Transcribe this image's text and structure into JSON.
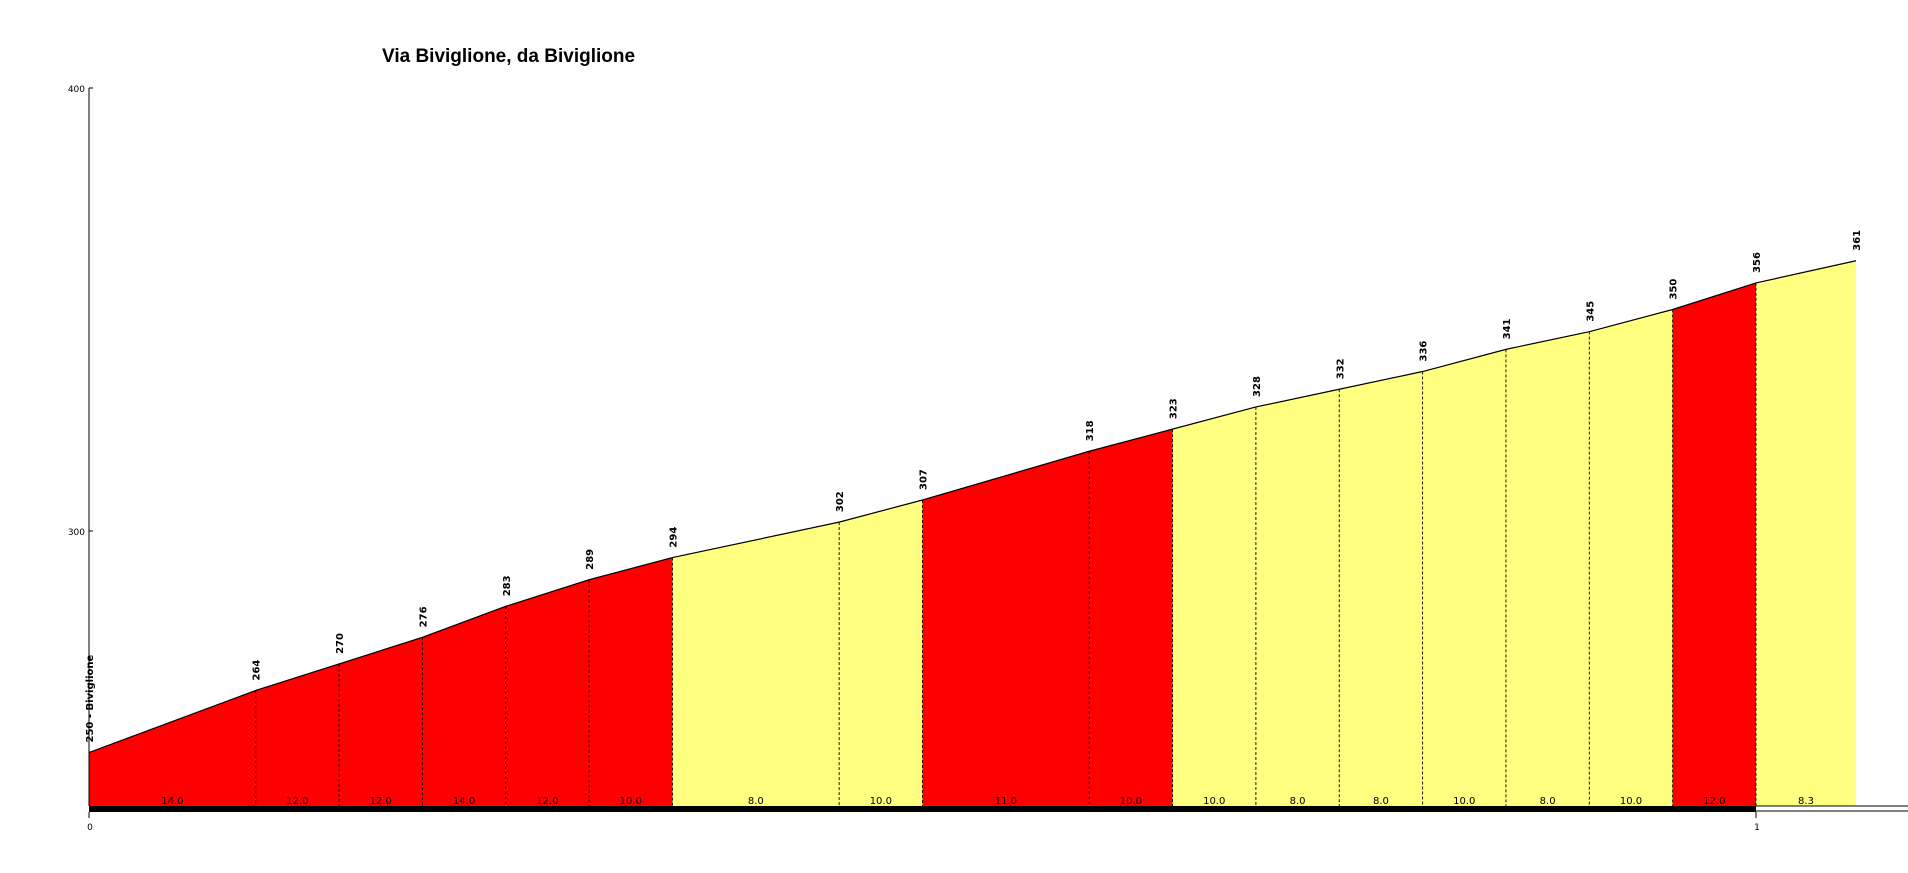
{
  "chart_data": {
    "type": "area",
    "title": "Via Biviglione, da Biviglione",
    "xlabel": "",
    "ylabel": "",
    "xlim": [
      0,
      1.06
    ],
    "ylim": [
      237,
      400
    ],
    "y_ticks": [
      "300",
      "400"
    ],
    "x_ticks": [
      "0",
      "1"
    ],
    "start_label": "250 - Biviglione",
    "colors": {
      "steep": "#ff0000",
      "moderate": "#ffff80",
      "outline": "#000000"
    },
    "points": [
      {
        "km": 0.0,
        "elev": 250,
        "label": "250 - Biviglione"
      },
      {
        "km": 0.1,
        "elev": 264,
        "label": "264"
      },
      {
        "km": 0.15,
        "elev": 270,
        "label": "270"
      },
      {
        "km": 0.2,
        "elev": 276,
        "label": "276"
      },
      {
        "km": 0.25,
        "elev": 283,
        "label": "283"
      },
      {
        "km": 0.3,
        "elev": 289,
        "label": "289"
      },
      {
        "km": 0.35,
        "elev": 294,
        "label": "294"
      },
      {
        "km": 0.45,
        "elev": 302,
        "label": "302"
      },
      {
        "km": 0.5,
        "elev": 307,
        "label": "307"
      },
      {
        "km": 0.6,
        "elev": 318,
        "label": "318"
      },
      {
        "km": 0.65,
        "elev": 323,
        "label": "323"
      },
      {
        "km": 0.7,
        "elev": 328,
        "label": "328"
      },
      {
        "km": 0.75,
        "elev": 332,
        "label": "332"
      },
      {
        "km": 0.8,
        "elev": 336,
        "label": "336"
      },
      {
        "km": 0.85,
        "elev": 341,
        "label": "341"
      },
      {
        "km": 0.9,
        "elev": 345,
        "label": "345"
      },
      {
        "km": 0.95,
        "elev": 350,
        "label": "350"
      },
      {
        "km": 1.0,
        "elev": 356,
        "label": "356"
      },
      {
        "km": 1.06,
        "elev": 361,
        "label": "361"
      }
    ],
    "segments": [
      {
        "gradient": "14.0",
        "class": "steep"
      },
      {
        "gradient": "12.0",
        "class": "steep"
      },
      {
        "gradient": "12.0",
        "class": "steep"
      },
      {
        "gradient": "14.0",
        "class": "steep"
      },
      {
        "gradient": "12.0",
        "class": "steep"
      },
      {
        "gradient": "10.0",
        "class": "steep"
      },
      {
        "gradient": "8.0",
        "class": "moderate"
      },
      {
        "gradient": "10.0",
        "class": "moderate"
      },
      {
        "gradient": "11.0",
        "class": "steep"
      },
      {
        "gradient": "10.0",
        "class": "steep"
      },
      {
        "gradient": "10.0",
        "class": "moderate"
      },
      {
        "gradient": "8.0",
        "class": "moderate"
      },
      {
        "gradient": "8.0",
        "class": "moderate"
      },
      {
        "gradient": "10.0",
        "class": "moderate"
      },
      {
        "gradient": "8.0",
        "class": "moderate"
      },
      {
        "gradient": "10.0",
        "class": "moderate"
      },
      {
        "gradient": "12.0",
        "class": "steep"
      },
      {
        "gradient": "8.3",
        "class": "moderate"
      }
    ]
  }
}
